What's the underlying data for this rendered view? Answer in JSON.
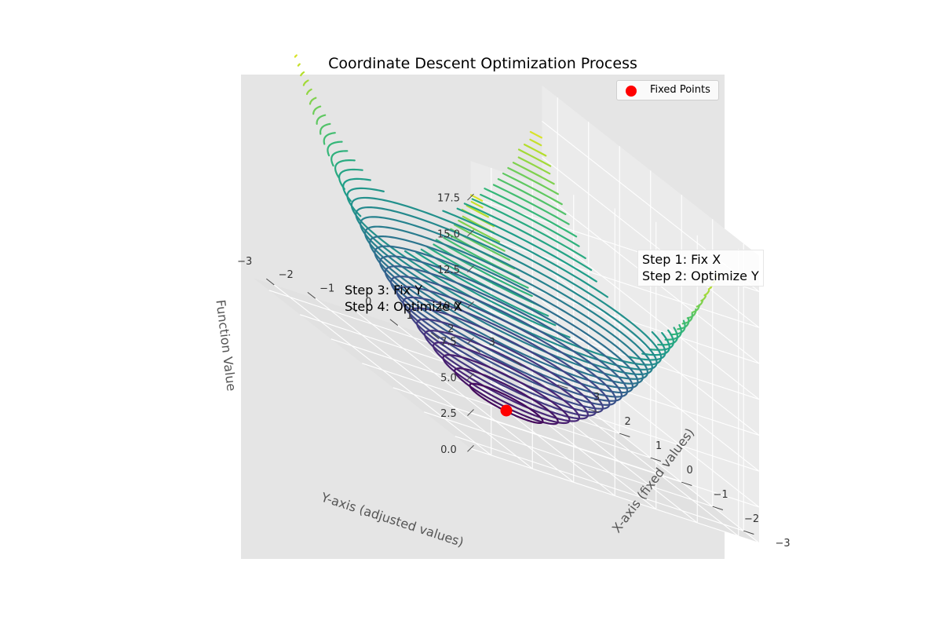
{
  "chart_data": {
    "type": "surface3d",
    "title": "Coordinate Descent Optimization Process",
    "function": "x^2 + y^2",
    "x_axis": {
      "label": "X-axis (fixed values)",
      "range": [
        -3,
        3
      ],
      "ticks": [
        "−3",
        "−2",
        "−1",
        "0",
        "1",
        "2",
        "3"
      ]
    },
    "y_axis": {
      "label": "Y-axis (adjusted values)",
      "range": [
        -3,
        3
      ],
      "ticks": [
        "−3",
        "−2",
        "−1",
        "0",
        "1",
        "2",
        "3"
      ]
    },
    "z_axis": {
      "label": "Function Value",
      "range": [
        0,
        18
      ],
      "ticks": [
        "0.0",
        "2.5",
        "5.0",
        "7.5",
        "10.0",
        "12.5",
        "15.0",
        "17.5"
      ]
    },
    "colormap": "viridis",
    "contour_levels": {
      "start": 0.5,
      "end": 17.5,
      "step": 0.5
    },
    "points": [
      {
        "name": "Fixed Points",
        "x": 0,
        "y": 0,
        "z": 0,
        "color": "#ff0000"
      }
    ],
    "legend": {
      "entries": [
        "Fixed Points"
      ],
      "position": "upper right"
    },
    "annotations": [
      {
        "line1": "Step 1: Fix X",
        "line2": "Step 2: Optimize Y"
      },
      {
        "line1": "Step 3: Fix Y",
        "line2": "Step 4: Optimize X"
      }
    ],
    "grid": true
  }
}
